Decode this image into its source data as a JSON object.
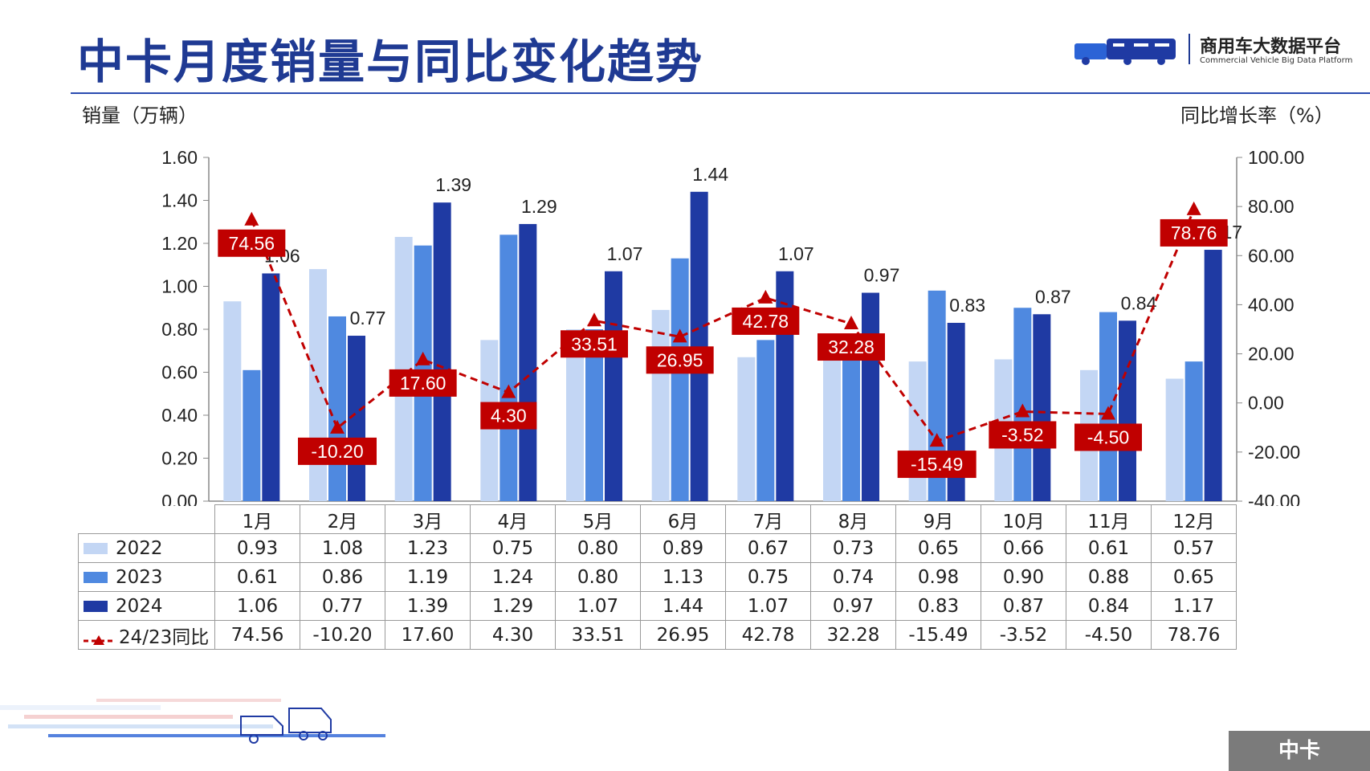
{
  "page": {
    "title": "中卡月度销量与同比变化趋势",
    "logo_cn": "商用车大数据平台",
    "logo_en": "Commercial Vehicle Big Data Platform",
    "left_axis_title": "销量（万辆）",
    "right_axis_title": "同比增长率（%）",
    "footer_tag": "中卡"
  },
  "colors": {
    "s2022": "#c3d6f4",
    "s2023": "#4f89e0",
    "s2024": "#1f3aa3",
    "yoy": "#c00000",
    "title": "#1f3a93"
  },
  "table": {
    "row_labels": [
      "2022",
      "2023",
      "2024",
      "24/23同比"
    ],
    "rows": [
      [
        "0.93",
        "1.08",
        "1.23",
        "0.75",
        "0.80",
        "0.89",
        "0.67",
        "0.73",
        "0.65",
        "0.66",
        "0.61",
        "0.57"
      ],
      [
        "0.61",
        "0.86",
        "1.19",
        "1.24",
        "0.80",
        "1.13",
        "0.75",
        "0.74",
        "0.98",
        "0.90",
        "0.88",
        "0.65"
      ],
      [
        "1.06",
        "0.77",
        "1.39",
        "1.29",
        "1.07",
        "1.44",
        "1.07",
        "0.97",
        "0.83",
        "0.87",
        "0.84",
        "1.17"
      ],
      [
        "74.56",
        "-10.20",
        "17.60",
        "4.30",
        "33.51",
        "26.95",
        "42.78",
        "32.28",
        "-15.49",
        "-3.52",
        "-4.50",
        "78.76"
      ]
    ]
  },
  "chart_data": {
    "type": "bar",
    "categories": [
      "1月",
      "2月",
      "3月",
      "4月",
      "5月",
      "6月",
      "7月",
      "8月",
      "9月",
      "10月",
      "11月",
      "12月"
    ],
    "series": [
      {
        "name": "2022",
        "type": "bar",
        "axis": "left",
        "values": [
          0.93,
          1.08,
          1.23,
          0.75,
          0.8,
          0.89,
          0.67,
          0.73,
          0.65,
          0.66,
          0.61,
          0.57
        ]
      },
      {
        "name": "2023",
        "type": "bar",
        "axis": "left",
        "values": [
          0.61,
          0.86,
          1.19,
          1.24,
          0.8,
          1.13,
          0.75,
          0.74,
          0.98,
          0.9,
          0.88,
          0.65
        ]
      },
      {
        "name": "2024",
        "type": "bar",
        "axis": "left",
        "values": [
          1.06,
          0.77,
          1.39,
          1.29,
          1.07,
          1.44,
          1.07,
          0.97,
          0.83,
          0.87,
          0.84,
          1.17
        ]
      },
      {
        "name": "24/23同比",
        "type": "line",
        "axis": "right",
        "values": [
          74.56,
          -10.2,
          17.6,
          4.3,
          33.51,
          26.95,
          42.78,
          32.28,
          -15.49,
          -3.52,
          -4.5,
          78.76
        ]
      }
    ],
    "bar_labels_2024": [
      "1.06",
      "0.77",
      "1.39",
      "1.29",
      "1.07",
      "1.44",
      "1.07",
      "0.97",
      "0.83",
      "0.87",
      "0.84",
      "1.17"
    ],
    "left_axis": {
      "ylim": [
        0,
        1.6
      ],
      "ticks": [
        "0.00",
        "0.20",
        "0.40",
        "0.60",
        "0.80",
        "1.00",
        "1.20",
        "1.40",
        "1.60"
      ]
    },
    "right_axis": {
      "ylim": [
        -40,
        100
      ],
      "ticks": [
        "-40.00",
        "-20.00",
        "0.00",
        "20.00",
        "40.00",
        "60.00",
        "80.00",
        "100.00"
      ]
    },
    "grid": false
  }
}
